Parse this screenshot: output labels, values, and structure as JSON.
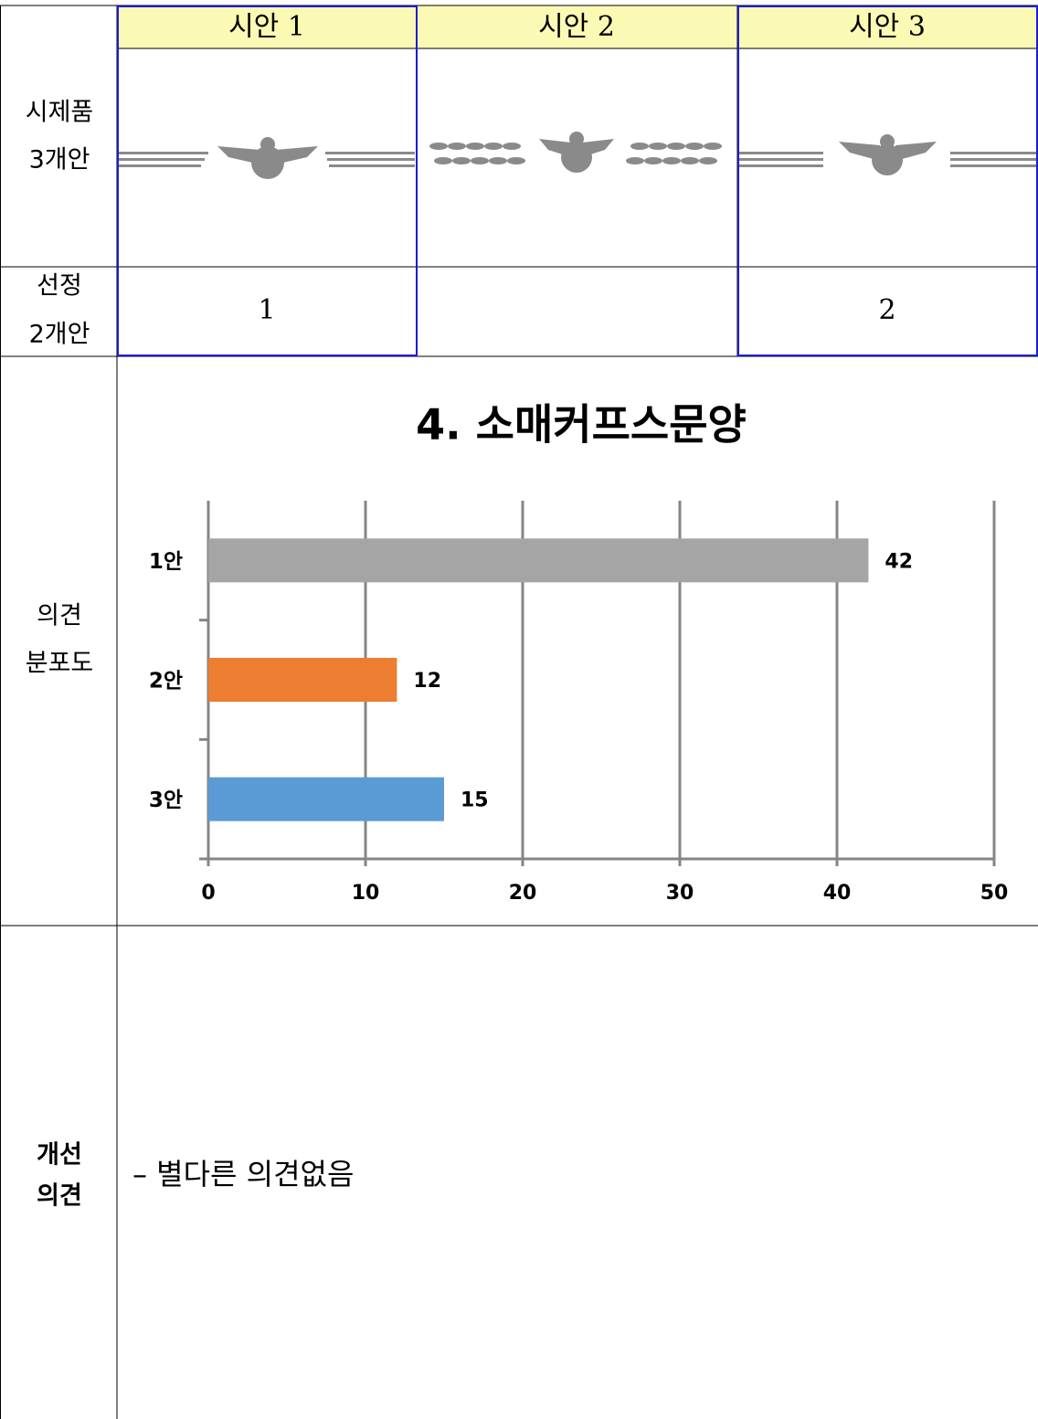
{
  "table": {
    "header": [
      "시안 1",
      "시안 2",
      "시안 3"
    ],
    "prototype_label": [
      "시제품",
      "3개안"
    ],
    "selection_label": [
      "선정",
      "2개안"
    ],
    "selection": [
      1,
      null,
      2
    ],
    "chart_label": [
      "의견",
      "분포도"
    ],
    "comment_label": [
      "개선",
      "의견"
    ],
    "comment": "– 별다른 의견없음"
  },
  "chart_data": {
    "type": "bar",
    "orientation": "horizontal",
    "title": "4. 소매커프스문양",
    "categories": [
      "1안",
      "2안",
      "3안"
    ],
    "values": [
      42,
      12,
      15
    ],
    "colors": [
      "#a5a5a5",
      "#ed7d31",
      "#5b9bd5"
    ],
    "xlim": [
      0,
      50
    ],
    "xticks": [
      0,
      10,
      20,
      30,
      40,
      50
    ],
    "grid": true
  }
}
